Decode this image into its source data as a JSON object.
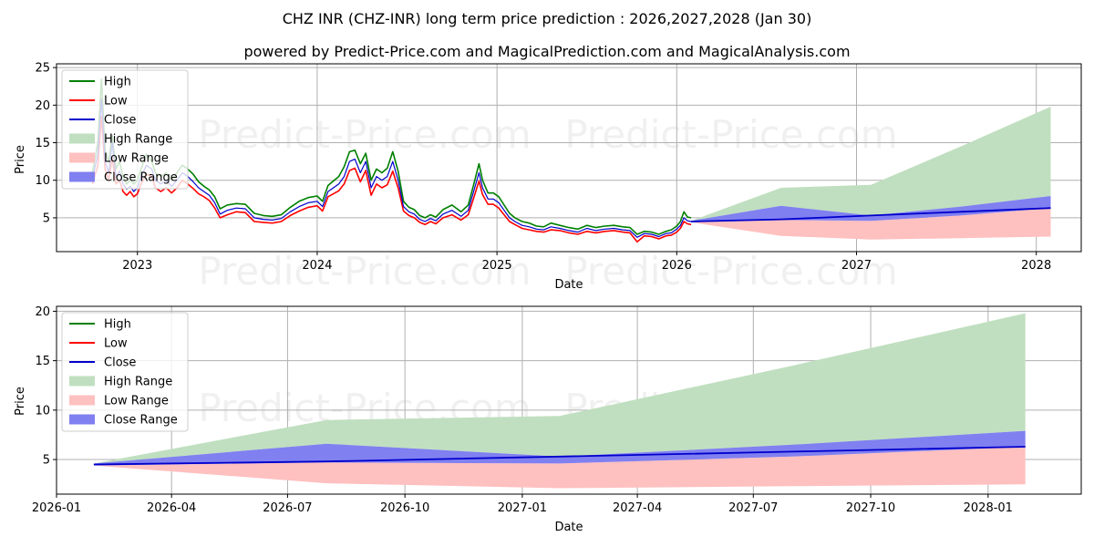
{
  "header": {
    "title": "CHZ INR (CHZ-INR) long term price prediction : 2026,2027,2028 (Jan 30)",
    "subtitle": "powered by Predict-Price.com and MagicalPrediction.com and MagicalAnalysis.com"
  },
  "watermark": "Predict-Price.com",
  "colors": {
    "high": "#008000",
    "low": "#ff0000",
    "close": "#0000cc",
    "high_range": "#c0dfc0",
    "low_range": "#ffc0c0",
    "close_range": "#8080f0"
  },
  "chart_data": [
    {
      "type": "line",
      "title": "",
      "xlabel": "Date",
      "ylabel": "Price",
      "xlim": [
        2022.55,
        2028.25
      ],
      "ylim": [
        0.5,
        25.5
      ],
      "x_ticks": [
        {
          "x": 2023,
          "label": "2023"
        },
        {
          "x": 2024,
          "label": "2024"
        },
        {
          "x": 2025,
          "label": "2025"
        },
        {
          "x": 2026,
          "label": "2026"
        },
        {
          "x": 2027,
          "label": "2027"
        },
        {
          "x": 2028,
          "label": "2028"
        }
      ],
      "y_ticks": [
        5,
        10,
        15,
        20,
        25
      ],
      "grid": true,
      "legend": {
        "position": "top-left",
        "entries": [
          "High",
          "Low",
          "Close",
          "High Range",
          "Low Range",
          "Close Range"
        ]
      },
      "history": {
        "x": [
          2022.75,
          2022.78,
          2022.8,
          2022.82,
          2022.84,
          2022.86,
          2022.88,
          2022.9,
          2022.92,
          2022.94,
          2022.96,
          2022.98,
          2023.0,
          2023.02,
          2023.05,
          2023.08,
          2023.1,
          2023.13,
          2023.16,
          2023.19,
          2023.22,
          2023.25,
          2023.28,
          2023.31,
          2023.34,
          2023.37,
          2023.4,
          2023.43,
          2023.46,
          2023.5,
          2023.55,
          2023.6,
          2023.65,
          2023.7,
          2023.75,
          2023.8,
          2023.85,
          2023.9,
          2023.95,
          2024.0,
          2024.03,
          2024.06,
          2024.09,
          2024.12,
          2024.15,
          2024.18,
          2024.21,
          2024.24,
          2024.27,
          2024.3,
          2024.33,
          2024.36,
          2024.39,
          2024.42,
          2024.45,
          2024.48,
          2024.51,
          2024.54,
          2024.57,
          2024.6,
          2024.63,
          2024.66,
          2024.7,
          2024.75,
          2024.8,
          2024.84,
          2024.87,
          2024.9,
          2024.92,
          2024.95,
          2024.98,
          2025.01,
          2025.04,
          2025.07,
          2025.1,
          2025.14,
          2025.18,
          2025.22,
          2025.26,
          2025.3,
          2025.35,
          2025.4,
          2025.45,
          2025.5,
          2025.55,
          2025.6,
          2025.65,
          2025.7,
          2025.74,
          2025.78,
          2025.82,
          2025.86,
          2025.9,
          2025.94,
          2025.97,
          2026.0,
          2026.02,
          2026.04,
          2026.06,
          2026.08
        ],
        "close": [
          10.2,
          13.5,
          20.8,
          12.5,
          11.0,
          15.0,
          10.5,
          11.2,
          9.5,
          8.8,
          9.2,
          8.5,
          9.0,
          10.5,
          12.0,
          11.5,
          10.0,
          9.5,
          10.0,
          9.2,
          10.0,
          11.0,
          10.5,
          9.8,
          9.0,
          8.5,
          8.0,
          7.0,
          5.5,
          6.0,
          6.3,
          6.2,
          5.0,
          4.8,
          4.7,
          4.9,
          5.8,
          6.5,
          7.0,
          7.2,
          6.5,
          8.5,
          9.0,
          9.5,
          10.5,
          12.5,
          12.8,
          11.0,
          12.5,
          9.0,
          10.5,
          10.0,
          10.5,
          12.5,
          10.0,
          6.5,
          5.8,
          5.5,
          4.8,
          4.5,
          4.9,
          4.6,
          5.5,
          6.0,
          5.2,
          6.0,
          8.5,
          11.0,
          9.0,
          7.5,
          7.5,
          7.0,
          6.0,
          5.0,
          4.5,
          4.0,
          3.8,
          3.5,
          3.4,
          3.8,
          3.6,
          3.3,
          3.1,
          3.6,
          3.3,
          3.5,
          3.6,
          3.4,
          3.3,
          2.4,
          2.9,
          2.8,
          2.5,
          2.9,
          3.0,
          3.5,
          4.0,
          5.0,
          4.6,
          4.5
        ],
        "high": [
          11.0,
          15.0,
          23.5,
          14.0,
          12.5,
          16.0,
          11.5,
          12.5,
          10.5,
          9.5,
          10.0,
          9.5,
          10.0,
          11.5,
          13.5,
          12.5,
          11.0,
          10.5,
          11.0,
          10.0,
          11.0,
          12.0,
          11.5,
          10.8,
          9.8,
          9.2,
          8.7,
          7.8,
          6.2,
          6.7,
          6.9,
          6.8,
          5.6,
          5.3,
          5.2,
          5.4,
          6.4,
          7.2,
          7.7,
          7.9,
          7.2,
          9.3,
          9.9,
          10.5,
          11.8,
          13.8,
          14.0,
          12.2,
          13.6,
          10.0,
          11.5,
          11.0,
          11.6,
          13.8,
          11.2,
          7.2,
          6.4,
          6.1,
          5.3,
          5.0,
          5.4,
          5.1,
          6.1,
          6.7,
          5.8,
          6.7,
          9.4,
          12.2,
          10.0,
          8.3,
          8.3,
          7.8,
          6.7,
          5.6,
          5.0,
          4.5,
          4.3,
          3.9,
          3.8,
          4.3,
          4.0,
          3.7,
          3.5,
          4.0,
          3.7,
          3.9,
          4.0,
          3.8,
          3.7,
          2.8,
          3.2,
          3.1,
          2.8,
          3.2,
          3.4,
          3.9,
          4.5,
          5.8,
          5.1,
          5.0
        ],
        "low": [
          9.5,
          12.0,
          18.5,
          11.5,
          10.0,
          13.0,
          9.5,
          10.0,
          8.5,
          8.0,
          8.5,
          7.8,
          8.2,
          9.5,
          10.8,
          10.5,
          9.0,
          8.5,
          9.0,
          8.3,
          9.0,
          10.0,
          9.5,
          8.9,
          8.2,
          7.8,
          7.3,
          6.3,
          5.0,
          5.4,
          5.8,
          5.7,
          4.5,
          4.4,
          4.3,
          4.5,
          5.3,
          5.9,
          6.4,
          6.6,
          5.9,
          7.8,
          8.2,
          8.6,
          9.5,
          11.3,
          11.6,
          9.8,
          11.3,
          8.0,
          9.5,
          9.0,
          9.4,
          11.2,
          9.0,
          5.9,
          5.3,
          5.0,
          4.4,
          4.1,
          4.5,
          4.2,
          5.0,
          5.4,
          4.7,
          5.4,
          7.6,
          9.9,
          8.1,
          6.8,
          6.8,
          6.3,
          5.4,
          4.5,
          4.1,
          3.6,
          3.4,
          3.2,
          3.1,
          3.4,
          3.3,
          3.0,
          2.8,
          3.2,
          3.0,
          3.2,
          3.3,
          3.1,
          3.0,
          1.8,
          2.6,
          2.5,
          2.2,
          2.6,
          2.7,
          3.1,
          3.6,
          4.5,
          4.2,
          4.1
        ]
      },
      "forecast": {
        "x": [
          2026.08,
          2026.58,
          2027.08,
          2027.58,
          2028.08
        ],
        "high_range_upper": [
          4.6,
          9.0,
          9.4,
          14.5,
          19.8
        ],
        "close_range_upper": [
          4.6,
          6.6,
          5.3,
          6.5,
          7.9
        ],
        "close_range_lower": [
          4.4,
          4.7,
          4.6,
          5.3,
          6.3
        ],
        "low_range_upper": [
          4.4,
          4.7,
          4.6,
          5.3,
          6.3
        ],
        "low_range_lower": [
          4.4,
          2.6,
          2.1,
          2.3,
          2.5
        ],
        "close": [
          4.5,
          4.8,
          5.3,
          5.8,
          6.3
        ]
      }
    },
    {
      "type": "area",
      "title": "",
      "xlabel": "Date",
      "ylabel": "Price",
      "xlim": [
        2026.0,
        2028.2
      ],
      "ylim": [
        1.5,
        20.5
      ],
      "x_ticks": [
        {
          "x": 2026.0,
          "label": "2026-01"
        },
        {
          "x": 2026.247,
          "label": "2026-04"
        },
        {
          "x": 2026.496,
          "label": "2026-07"
        },
        {
          "x": 2026.748,
          "label": "2026-10"
        },
        {
          "x": 2027.0,
          "label": "2027-01"
        },
        {
          "x": 2027.247,
          "label": "2027-04"
        },
        {
          "x": 2027.496,
          "label": "2027-07"
        },
        {
          "x": 2027.748,
          "label": "2027-10"
        },
        {
          "x": 2028.0,
          "label": "2028-01"
        }
      ],
      "y_ticks": [
        5,
        10,
        15,
        20
      ],
      "grid": true,
      "legend": {
        "position": "top-left",
        "entries": [
          "High",
          "Low",
          "Close",
          "High Range",
          "Low Range",
          "Close Range"
        ]
      },
      "forecast": {
        "x": [
          2026.08,
          2026.58,
          2027.08,
          2027.58,
          2028.08
        ],
        "high_range_upper": [
          4.6,
          9.0,
          9.4,
          14.5,
          19.8
        ],
        "close_range_upper": [
          4.6,
          6.6,
          5.3,
          6.5,
          7.9
        ],
        "close_range_lower": [
          4.4,
          4.7,
          4.6,
          5.3,
          6.3
        ],
        "low_range_upper": [
          4.4,
          4.7,
          4.6,
          5.3,
          6.3
        ],
        "low_range_lower": [
          4.4,
          2.6,
          2.1,
          2.3,
          2.5
        ],
        "close": [
          4.5,
          4.8,
          5.3,
          5.8,
          6.3
        ]
      }
    }
  ]
}
